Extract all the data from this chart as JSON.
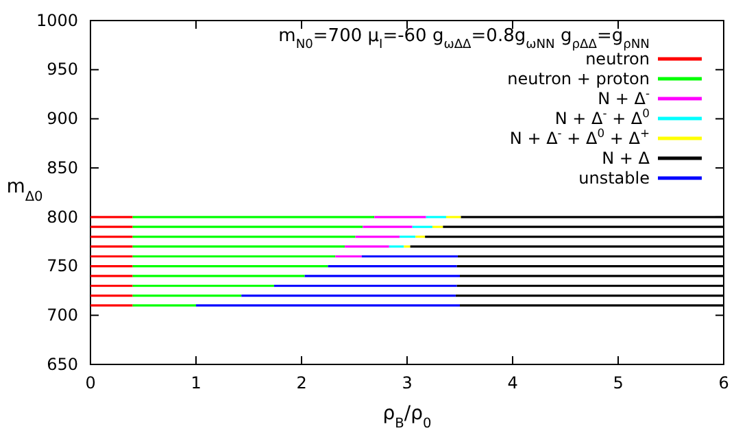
{
  "chart_data": {
    "type": "line",
    "xlabel": "ρ$_{B}$/ρ$_{0}$",
    "ylabel": "m$_{Δ0}$",
    "annotations": [
      "m$_{N0}$=700 μ$_{I}$=-60 g$_{ωΔΔ}$=0.8g$_{ωNN}$ g$_{ρΔΔ}$=g$_{ρNN}$"
    ],
    "xlim": [
      0,
      6
    ],
    "xticks": [
      0,
      1,
      2,
      3,
      4,
      5,
      6
    ],
    "ylim": [
      650,
      1000
    ],
    "yticks": [
      650,
      700,
      750,
      800,
      850,
      900,
      950,
      1000
    ],
    "legend": "top right",
    "grid": false,
    "marker": "none",
    "line_style": "solid",
    "series": [
      {
        "name": "neutron",
        "color": "#ff0000",
        "x": [
          0,
          0.4
        ],
        "values": [
          800,
          800
        ]
      },
      {
        "color": "#ff0000",
        "x": [
          0,
          0.4
        ],
        "values": [
          790,
          790
        ]
      },
      {
        "color": "#ff0000",
        "x": [
          0,
          0.4
        ],
        "values": [
          780,
          780
        ]
      },
      {
        "color": "#ff0000",
        "x": [
          0,
          0.4
        ],
        "values": [
          770,
          770
        ]
      },
      {
        "color": "#ff0000",
        "x": [
          0,
          0.4
        ],
        "values": [
          760,
          760
        ]
      },
      {
        "color": "#ff0000",
        "x": [
          0,
          0.4
        ],
        "values": [
          750,
          750
        ]
      },
      {
        "color": "#ff0000",
        "x": [
          0,
          0.4
        ],
        "values": [
          740,
          740
        ]
      },
      {
        "color": "#ff0000",
        "x": [
          0,
          0.4
        ],
        "values": [
          730,
          730
        ]
      },
      {
        "color": "#ff0000",
        "x": [
          0,
          0.4
        ],
        "values": [
          720,
          720
        ]
      },
      {
        "color": "#ff0000",
        "x": [
          0,
          0.4
        ],
        "values": [
          710,
          710
        ]
      },
      {
        "name": "neutron + proton",
        "color": "#00ff00",
        "x": [
          0.4,
          2.69
        ],
        "values": [
          800,
          800
        ]
      },
      {
        "color": "#00ff00",
        "x": [
          0.4,
          2.58
        ],
        "values": [
          790,
          790
        ]
      },
      {
        "color": "#00ff00",
        "x": [
          0.4,
          2.51
        ],
        "values": [
          780,
          780
        ]
      },
      {
        "color": "#00ff00",
        "x": [
          0.4,
          2.41
        ],
        "values": [
          770,
          770
        ]
      },
      {
        "color": "#00ff00",
        "x": [
          0.4,
          2.32
        ],
        "values": [
          760,
          760
        ]
      },
      {
        "color": "#00ff00",
        "x": [
          0.4,
          2.25
        ],
        "values": [
          750,
          750
        ]
      },
      {
        "color": "#00ff00",
        "x": [
          0.4,
          2.03
        ],
        "values": [
          740,
          740
        ]
      },
      {
        "color": "#00ff00",
        "x": [
          0.4,
          1.74
        ],
        "values": [
          730,
          730
        ]
      },
      {
        "color": "#00ff00",
        "x": [
          0.4,
          1.43
        ],
        "values": [
          720,
          720
        ]
      },
      {
        "color": "#00ff00",
        "x": [
          0.4,
          1.0
        ],
        "values": [
          710,
          710
        ]
      },
      {
        "name": "N + Δ$^{-}$",
        "color": "#ff00ff",
        "x": [
          2.69,
          3.18
        ],
        "values": [
          800,
          800
        ]
      },
      {
        "color": "#ff00ff",
        "x": [
          2.58,
          3.05
        ],
        "values": [
          790,
          790
        ]
      },
      {
        "color": "#ff00ff",
        "x": [
          2.51,
          2.93
        ],
        "values": [
          780,
          780
        ]
      },
      {
        "color": "#ff00ff",
        "x": [
          2.41,
          2.83
        ],
        "values": [
          770,
          770
        ]
      },
      {
        "color": "#ff00ff",
        "x": [
          2.32,
          2.57
        ],
        "values": [
          760,
          760
        ]
      },
      {
        "name": "N + Δ$^{-}$ + Δ$^{0}$",
        "color": "#00ffff",
        "x": [
          3.18,
          3.37
        ],
        "values": [
          800,
          800
        ]
      },
      {
        "color": "#00ffff",
        "x": [
          3.05,
          3.24
        ],
        "values": [
          790,
          790
        ]
      },
      {
        "color": "#00ffff",
        "x": [
          2.93,
          3.08
        ],
        "values": [
          780,
          780
        ]
      },
      {
        "color": "#00ffff",
        "x": [
          2.83,
          2.97
        ],
        "values": [
          770,
          770
        ]
      },
      {
        "name": "N + Δ$^{-}$ + Δ$^{0}$ + Δ$^{+}$",
        "color": "#ffff00",
        "x": [
          3.37,
          3.51
        ],
        "values": [
          800,
          800
        ]
      },
      {
        "color": "#ffff00",
        "x": [
          3.24,
          3.34
        ],
        "values": [
          790,
          790
        ]
      },
      {
        "color": "#ffff00",
        "x": [
          3.08,
          3.17
        ],
        "values": [
          780,
          780
        ]
      },
      {
        "color": "#ffff00",
        "x": [
          2.97,
          3.03
        ],
        "values": [
          770,
          770
        ]
      },
      {
        "name": "N + Δ",
        "color": "#000000",
        "x": [
          3.51,
          6
        ],
        "values": [
          800,
          800
        ]
      },
      {
        "color": "#000000",
        "x": [
          3.34,
          6
        ],
        "values": [
          790,
          790
        ]
      },
      {
        "color": "#000000",
        "x": [
          3.17,
          6
        ],
        "values": [
          780,
          780
        ]
      },
      {
        "color": "#000000",
        "x": [
          3.03,
          6
        ],
        "values": [
          770,
          770
        ]
      },
      {
        "color": "#000000",
        "x": [
          3.48,
          6
        ],
        "values": [
          760,
          760
        ]
      },
      {
        "color": "#000000",
        "x": [
          3.47,
          6
        ],
        "values": [
          750,
          750
        ]
      },
      {
        "color": "#000000",
        "x": [
          3.5,
          6
        ],
        "values": [
          740,
          740
        ]
      },
      {
        "color": "#000000",
        "x": [
          3.47,
          6
        ],
        "values": [
          730,
          730
        ]
      },
      {
        "color": "#000000",
        "x": [
          3.46,
          6
        ],
        "values": [
          720,
          720
        ]
      },
      {
        "color": "#000000",
        "x": [
          3.5,
          6
        ],
        "values": [
          710,
          710
        ]
      },
      {
        "name": "unstable",
        "color": "#0000ff",
        "x": [
          2.57,
          3.48
        ],
        "values": [
          760,
          760
        ]
      },
      {
        "color": "#0000ff",
        "x": [
          2.25,
          3.47
        ],
        "values": [
          750,
          750
        ]
      },
      {
        "color": "#0000ff",
        "x": [
          2.03,
          3.5
        ],
        "values": [
          740,
          740
        ]
      },
      {
        "color": "#0000ff",
        "x": [
          1.74,
          3.47
        ],
        "values": [
          730,
          730
        ]
      },
      {
        "color": "#0000ff",
        "x": [
          1.43,
          3.46
        ],
        "values": [
          720,
          720
        ]
      },
      {
        "color": "#0000ff",
        "x": [
          1.0,
          3.5
        ],
        "values": [
          710,
          710
        ]
      }
    ]
  }
}
